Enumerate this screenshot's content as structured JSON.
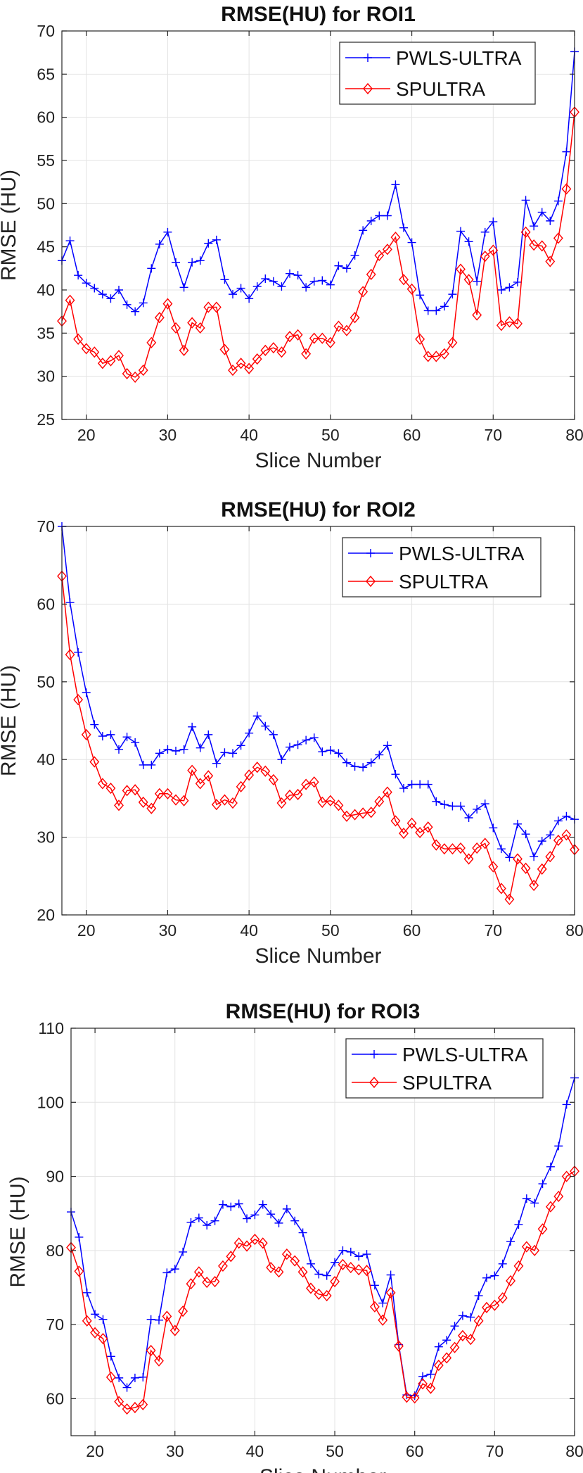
{
  "colors": {
    "pwls": "#0000ff",
    "spultra": "#ff0000",
    "grid": "#e3e3e3",
    "axis": "#262626"
  },
  "chart_data": [
    {
      "type": "line",
      "title": "RMSE(HU) for ROI1",
      "xlabel": "Slice Number",
      "ylabel": "RMSE (HU)",
      "xlim": [
        17,
        80
      ],
      "ylim": [
        25,
        70
      ],
      "xticks": [
        20,
        30,
        40,
        50,
        60,
        70,
        80
      ],
      "yticks": [
        25,
        30,
        35,
        40,
        45,
        50,
        55,
        60,
        65,
        70
      ],
      "grid": true,
      "legend_position": "top-right",
      "x": [
        17,
        18,
        19,
        20,
        21,
        22,
        23,
        24,
        25,
        26,
        27,
        28,
        29,
        30,
        31,
        32,
        33,
        34,
        35,
        36,
        37,
        38,
        39,
        40,
        41,
        42,
        43,
        44,
        45,
        46,
        47,
        48,
        49,
        50,
        51,
        52,
        53,
        54,
        55,
        56,
        57,
        58,
        59,
        60,
        61,
        62,
        63,
        64,
        65,
        66,
        67,
        68,
        69,
        70,
        71,
        72,
        73,
        74,
        75,
        76,
        77,
        78,
        79,
        80
      ],
      "series": [
        {
          "name": "PWLS-ULTRA",
          "marker": "plus",
          "values": [
            43.4,
            45.7,
            41.7,
            40.8,
            40.2,
            39.5,
            39.0,
            40.0,
            38.3,
            37.5,
            38.5,
            42.5,
            45.3,
            46.7,
            43.2,
            40.3,
            43.2,
            43.4,
            45.4,
            45.8,
            41.2,
            39.5,
            40.2,
            39.0,
            40.4,
            41.3,
            41.0,
            40.4,
            41.9,
            41.7,
            40.3,
            41.0,
            41.1,
            40.6,
            42.8,
            42.5,
            44.0,
            46.9,
            48.0,
            48.6,
            48.6,
            52.2,
            47.2,
            45.5,
            39.4,
            37.6,
            37.6,
            38.1,
            39.5,
            46.8,
            45.6,
            41.0,
            46.7,
            47.9,
            40.0,
            40.3,
            40.9,
            50.4,
            47.4,
            49.0,
            48.0,
            50.3,
            56.0,
            67.6
          ]
        },
        {
          "name": "SPULTRA",
          "marker": "diamond",
          "values": [
            36.4,
            38.8,
            34.3,
            33.2,
            32.8,
            31.5,
            31.8,
            32.4,
            30.3,
            29.9,
            30.7,
            33.9,
            36.8,
            38.4,
            35.6,
            33.0,
            36.2,
            35.6,
            38.0,
            38.0,
            33.1,
            30.7,
            31.5,
            30.9,
            32.0,
            33.0,
            33.3,
            32.8,
            34.6,
            34.8,
            32.6,
            34.4,
            34.4,
            33.9,
            35.8,
            35.3,
            36.8,
            39.8,
            41.8,
            44.0,
            44.7,
            46.1,
            41.2,
            40.1,
            34.3,
            32.3,
            32.3,
            32.6,
            33.9,
            42.4,
            41.2,
            37.1,
            43.9,
            44.6,
            35.9,
            36.3,
            36.1,
            46.7,
            45.2,
            45.1,
            43.3,
            46.0,
            51.7,
            60.6
          ]
        }
      ]
    },
    {
      "type": "line",
      "title": "RMSE(HU) for ROI2",
      "xlabel": "Slice Number",
      "ylabel": "RMSE (HU)",
      "xlim": [
        17,
        80
      ],
      "ylim": [
        20,
        70
      ],
      "xticks": [
        20,
        30,
        40,
        50,
        60,
        70,
        80
      ],
      "yticks": [
        20,
        30,
        40,
        50,
        60,
        70
      ],
      "grid": true,
      "legend_position": "top-right",
      "x": [
        17,
        18,
        19,
        20,
        21,
        22,
        23,
        24,
        25,
        26,
        27,
        28,
        29,
        30,
        31,
        32,
        33,
        34,
        35,
        36,
        37,
        38,
        39,
        40,
        41,
        42,
        43,
        44,
        45,
        46,
        47,
        48,
        49,
        50,
        51,
        52,
        53,
        54,
        55,
        56,
        57,
        58,
        59,
        60,
        61,
        62,
        63,
        64,
        65,
        66,
        67,
        68,
        69,
        70,
        71,
        72,
        73,
        74,
        75,
        76,
        77,
        78,
        79,
        80
      ],
      "series": [
        {
          "name": "PWLS-ULTRA",
          "marker": "plus",
          "values": [
            70.0,
            60.2,
            53.8,
            48.6,
            44.5,
            43.0,
            43.2,
            41.3,
            42.9,
            42.2,
            39.3,
            39.3,
            40.8,
            41.3,
            41.1,
            41.3,
            44.2,
            41.5,
            43.2,
            39.5,
            40.9,
            40.8,
            41.8,
            43.4,
            45.6,
            44.3,
            43.2,
            40.0,
            41.6,
            41.9,
            42.5,
            42.8,
            41.0,
            41.2,
            40.8,
            39.6,
            39.1,
            39.0,
            39.6,
            40.6,
            41.8,
            38.1,
            36.3,
            36.8,
            36.8,
            36.8,
            34.6,
            34.2,
            34.0,
            34.0,
            32.5,
            33.6,
            34.3,
            31.2,
            28.5,
            27.4,
            31.7,
            30.4,
            27.5,
            29.5,
            30.3,
            32.1,
            32.7,
            32.3
          ]
        },
        {
          "name": "SPULTRA",
          "marker": "diamond",
          "values": [
            63.6,
            53.5,
            47.7,
            43.2,
            39.7,
            36.9,
            36.3,
            34.1,
            36.0,
            36.1,
            34.5,
            33.7,
            35.6,
            35.6,
            34.8,
            34.7,
            38.6,
            36.9,
            37.9,
            34.2,
            34.8,
            34.4,
            36.5,
            38.0,
            39.0,
            38.5,
            37.4,
            34.4,
            35.4,
            35.5,
            36.8,
            37.1,
            34.5,
            34.7,
            34.1,
            32.7,
            32.9,
            33.1,
            33.2,
            34.6,
            35.8,
            32.1,
            30.5,
            31.8,
            30.6,
            31.3,
            29.0,
            28.5,
            28.5,
            28.6,
            27.2,
            28.6,
            29.2,
            26.2,
            23.4,
            22.0,
            27.2,
            26.0,
            23.8,
            25.9,
            27.5,
            29.6,
            30.3,
            28.4
          ]
        }
      ]
    },
    {
      "type": "line",
      "title": "RMSE(HU) for ROI3",
      "xlabel": "Slice Number",
      "ylabel": "RMSE (HU)",
      "xlim": [
        17,
        80
      ],
      "ylim": [
        55,
        110
      ],
      "xticks": [
        20,
        30,
        40,
        50,
        60,
        70,
        80
      ],
      "yticks": [
        60,
        70,
        80,
        90,
        100,
        110
      ],
      "grid": true,
      "legend_position": "top-right",
      "x": [
        17,
        18,
        19,
        20,
        21,
        22,
        23,
        24,
        25,
        26,
        27,
        28,
        29,
        30,
        31,
        32,
        33,
        34,
        35,
        36,
        37,
        38,
        39,
        40,
        41,
        42,
        43,
        44,
        45,
        46,
        47,
        48,
        49,
        50,
        51,
        52,
        53,
        54,
        55,
        56,
        57,
        58,
        59,
        60,
        61,
        62,
        63,
        64,
        65,
        66,
        67,
        68,
        69,
        70,
        71,
        72,
        73,
        74,
        75,
        76,
        77,
        78,
        79,
        80
      ],
      "series": [
        {
          "name": "PWLS-ULTRA",
          "marker": "plus",
          "values": [
            85.2,
            81.8,
            74.3,
            71.4,
            70.7,
            65.7,
            62.8,
            61.5,
            62.8,
            62.9,
            70.7,
            70.6,
            77.0,
            77.5,
            79.8,
            83.8,
            84.4,
            83.4,
            84.0,
            86.2,
            85.9,
            86.3,
            84.3,
            84.8,
            86.2,
            84.9,
            83.7,
            85.6,
            84.0,
            82.4,
            78.2,
            76.8,
            76.6,
            78.4,
            80.0,
            79.8,
            79.2,
            79.5,
            75.3,
            72.9,
            76.7,
            67.3,
            60.5,
            60.4,
            63.0,
            63.3,
            67.0,
            67.9,
            69.8,
            71.2,
            71.0,
            73.9,
            76.3,
            76.6,
            78.2,
            81.2,
            83.5,
            87.0,
            86.4,
            89.0,
            91.3,
            94.1,
            99.7,
            103.3
          ]
        },
        {
          "name": "SPULTRA",
          "marker": "diamond",
          "values": [
            80.4,
            77.2,
            70.5,
            68.9,
            68.1,
            62.9,
            59.6,
            58.6,
            58.8,
            59.2,
            66.5,
            65.1,
            71.1,
            69.2,
            71.8,
            75.5,
            77.1,
            75.7,
            75.8,
            77.9,
            79.2,
            81.0,
            80.6,
            81.5,
            81.0,
            77.7,
            77.1,
            79.5,
            78.6,
            77.1,
            74.9,
            74.1,
            73.9,
            75.8,
            78.1,
            77.7,
            77.4,
            77.3,
            72.4,
            70.6,
            74.3,
            67.1,
            60.2,
            60.1,
            62.0,
            61.4,
            64.5,
            65.5,
            66.9,
            68.5,
            68.0,
            70.5,
            72.3,
            72.6,
            73.6,
            75.9,
            77.9,
            80.5,
            80.0,
            82.9,
            85.9,
            87.3,
            90.0,
            90.7
          ]
        }
      ]
    }
  ]
}
